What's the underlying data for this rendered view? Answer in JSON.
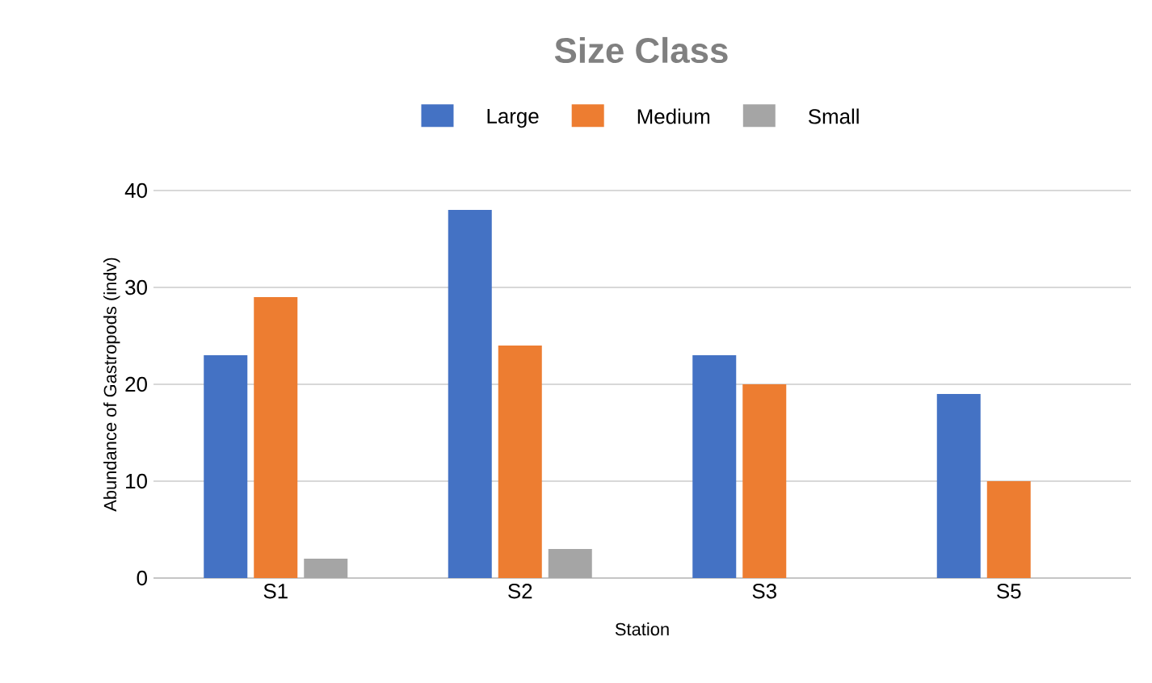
{
  "chart_data": {
    "type": "bar",
    "title": "Size Class",
    "xlabel": "Station",
    "ylabel": "Abundance of Gastropods (indv)",
    "categories": [
      "S1",
      "S2",
      "S3",
      "S5"
    ],
    "series": [
      {
        "name": "Large",
        "color": "#4472c4",
        "values": [
          23,
          38,
          23,
          19
        ]
      },
      {
        "name": "Medium",
        "color": "#ed7d31",
        "values": [
          29,
          24,
          20,
          10
        ]
      },
      {
        "name": "Small",
        "color": "#a5a5a5",
        "values": [
          2,
          3,
          0,
          0
        ]
      }
    ],
    "ylim": [
      0,
      40
    ],
    "yticks": [
      0,
      10,
      20,
      30,
      40
    ],
    "grid": "y",
    "legend": "top"
  }
}
